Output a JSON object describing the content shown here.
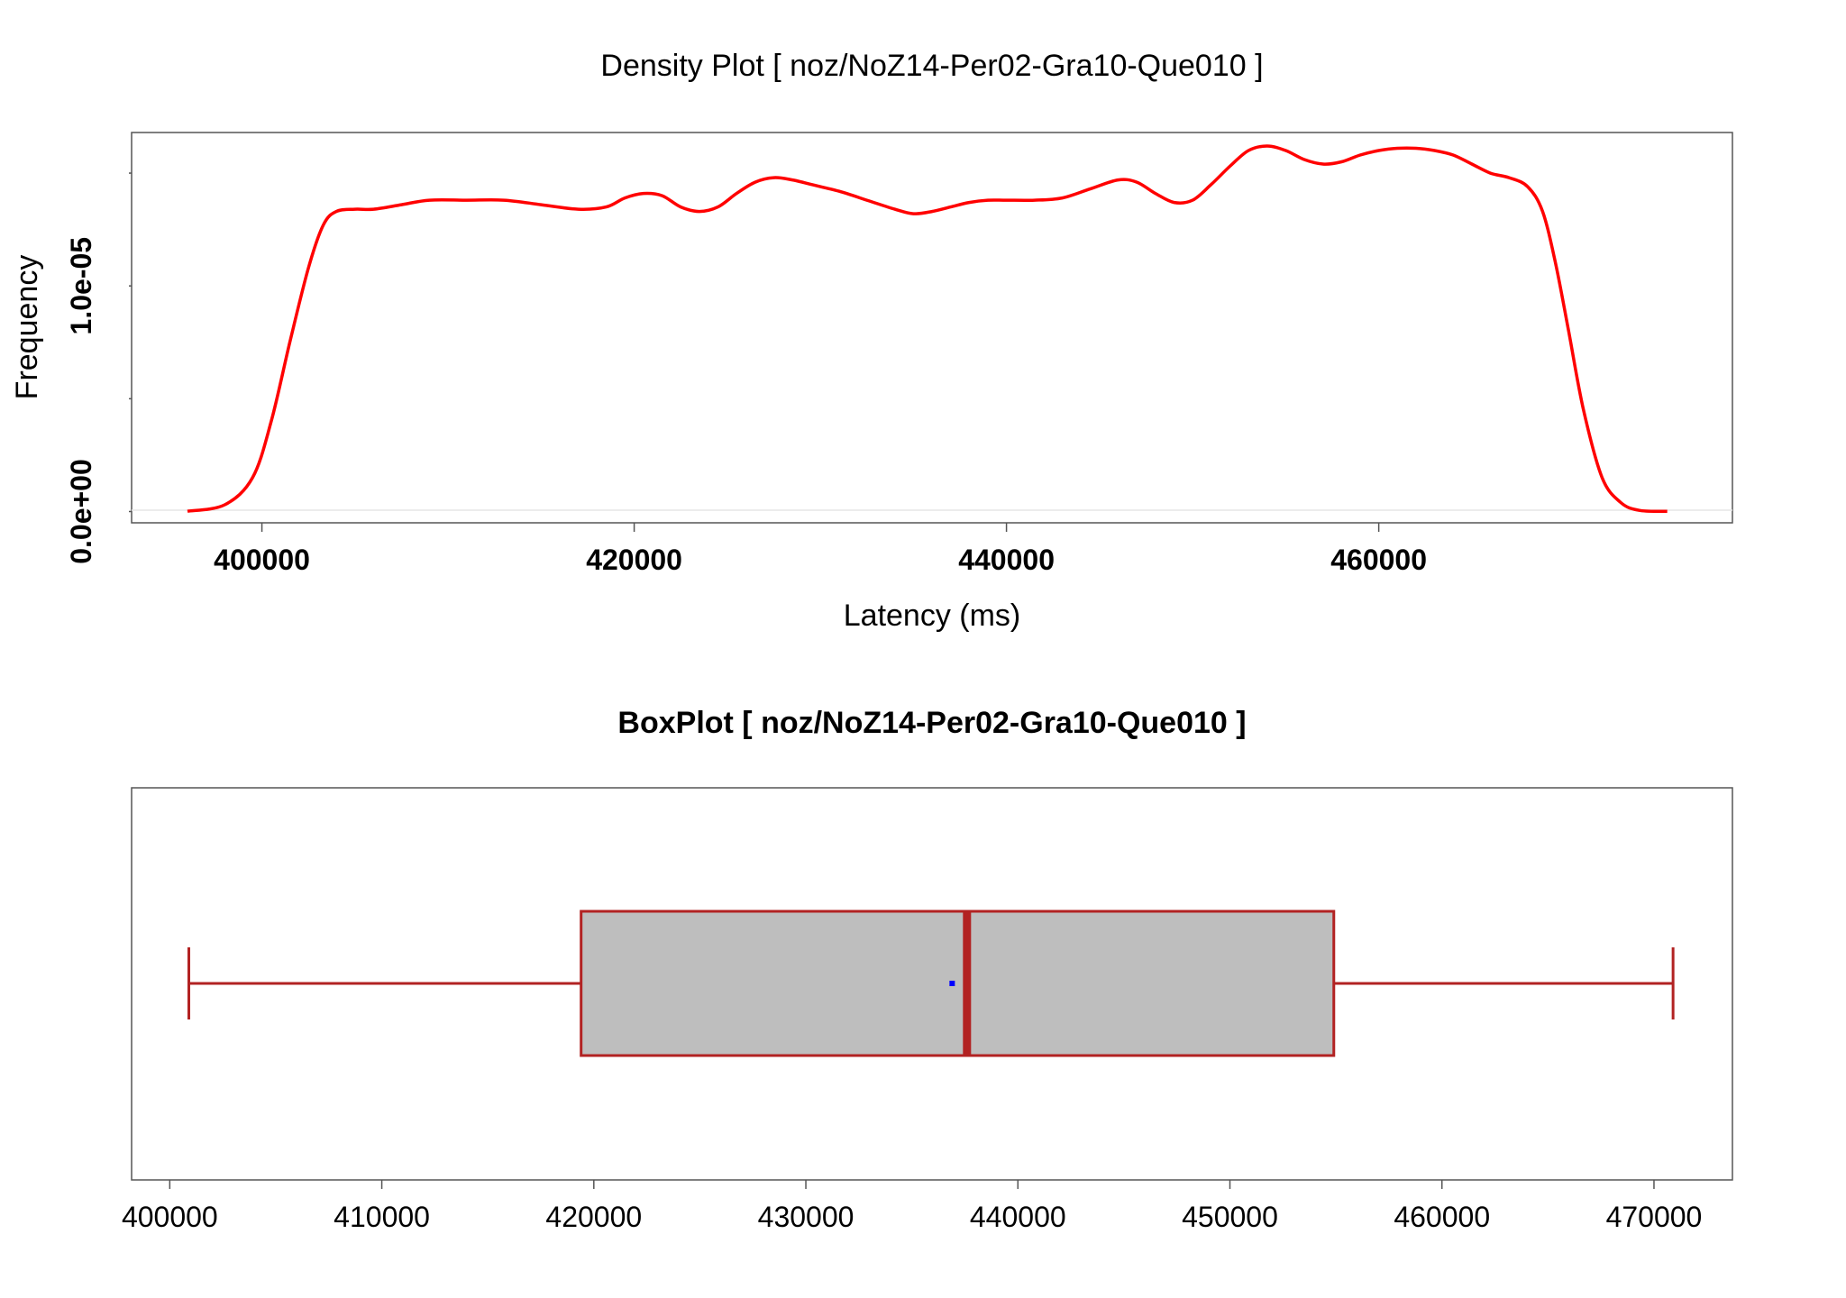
{
  "chart_data": [
    {
      "type": "area",
      "title": "Density Plot [ noz/NoZ14-Per02-Gra10-Que010 ]",
      "xlabel": "Latency (ms)",
      "ylabel": "Frequency",
      "xlim": [
        393000,
        479000
      ],
      "ylim": [
        -5e-07,
        1.68e-05
      ],
      "x_ticks": [
        400000,
        420000,
        440000,
        460000
      ],
      "x_tick_labels": [
        "400000",
        "420000",
        "440000",
        "460000"
      ],
      "y_ticks": [
        0,
        5e-06,
        1e-05,
        1.5e-05
      ],
      "y_tick_labels": [
        "0.0e+00",
        "",
        "1.0e-05",
        ""
      ],
      "color": "#ff0000",
      "series": [
        {
          "x": [
            396000,
            398000,
            399500,
            400500,
            401500,
            402500,
            403300,
            404000,
            405000,
            406000,
            407500,
            409000,
            411000,
            413000,
            415000,
            417000,
            418500,
            419500,
            420500,
            421500,
            422500,
            423500,
            424500,
            425500,
            426500,
            427500,
            428500,
            429500,
            431000,
            432500,
            434000,
            435000,
            436000,
            437000,
            438000,
            439000,
            440000,
            441500,
            443000,
            444500,
            446000,
            447000,
            448000,
            449000,
            450000,
            451000,
            452000,
            453000,
            454000,
            455000,
            456000,
            457000,
            458000,
            459000,
            460000,
            461000,
            462000,
            463000,
            464000,
            465000,
            466000,
            467000,
            468000,
            468800,
            469500,
            470200,
            471000,
            472000,
            473000,
            474000,
            475500
          ],
          "y": [
            1e-08,
            3e-07,
            1.5e-06,
            4e-06,
            7.5e-06,
            1.08e-05,
            1.27e-05,
            1.33e-05,
            1.34e-05,
            1.34e-05,
            1.36e-05,
            1.38e-05,
            1.38e-05,
            1.38e-05,
            1.36e-05,
            1.34e-05,
            1.35e-05,
            1.39e-05,
            1.41e-05,
            1.4e-05,
            1.35e-05,
            1.33e-05,
            1.35e-05,
            1.41e-05,
            1.46e-05,
            1.48e-05,
            1.47e-05,
            1.45e-05,
            1.42e-05,
            1.38e-05,
            1.34e-05,
            1.32e-05,
            1.33e-05,
            1.35e-05,
            1.37e-05,
            1.38e-05,
            1.38e-05,
            1.38e-05,
            1.39e-05,
            1.43e-05,
            1.47e-05,
            1.46e-05,
            1.41e-05,
            1.37e-05,
            1.38e-05,
            1.45e-05,
            1.53e-05,
            1.6e-05,
            1.62e-05,
            1.6e-05,
            1.56e-05,
            1.54e-05,
            1.55e-05,
            1.58e-05,
            1.6e-05,
            1.61e-05,
            1.61e-05,
            1.6e-05,
            1.58e-05,
            1.54e-05,
            1.5e-05,
            1.48e-05,
            1.44e-05,
            1.33e-05,
            1.1e-05,
            8e-06,
            4.5e-06,
            1.5e-06,
            4e-07,
            5e-08,
            1e-08
          ]
        }
      ]
    },
    {
      "type": "box",
      "title": "BoxPlot [ noz/NoZ14-Per02-Gra10-Que010 ]",
      "xlim": [
        398200,
        473700
      ],
      "x_ticks": [
        400000,
        410000,
        420000,
        430000,
        440000,
        450000,
        460000,
        470000
      ],
      "x_tick_labels": [
        "400000",
        "410000",
        "420000",
        "430000",
        "440000",
        "450000",
        "460000",
        "470000"
      ],
      "min": 400900,
      "q1": 419400,
      "median": 437600,
      "q3": 454900,
      "max": 470900,
      "mean": 436900,
      "box_color": "#bebebe",
      "line_color": "#b22222",
      "mean_color": "#0000ff"
    }
  ]
}
